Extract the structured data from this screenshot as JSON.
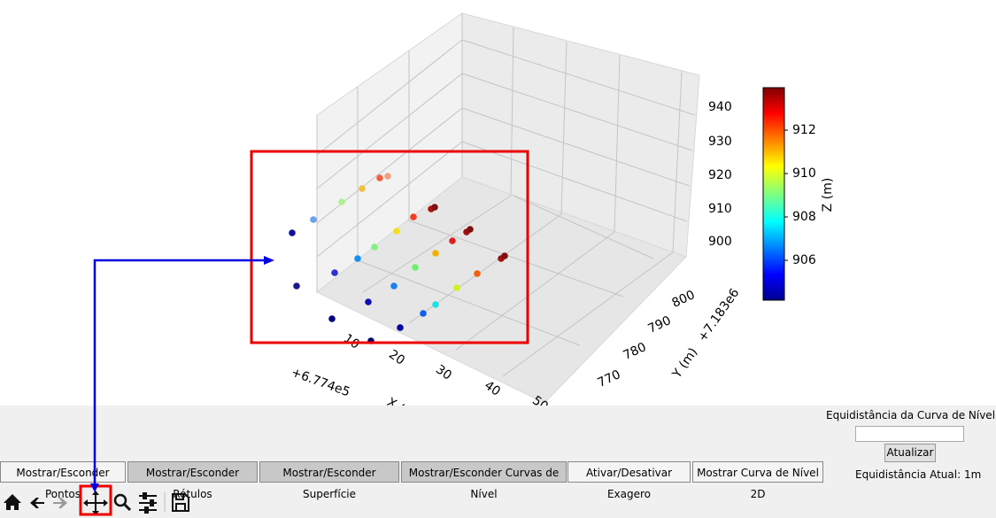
{
  "plot": {
    "zticks": [
      940,
      930,
      920,
      910,
      900
    ],
    "xticks": [
      10,
      20,
      30,
      40,
      50
    ],
    "yticks": [
      770,
      780,
      790,
      800
    ],
    "x_offset": "+6.774e5",
    "y_offset": "+7.183e6",
    "x_label": "X (m)",
    "y_label": "Y (m)",
    "colorbar": {
      "label": "Z (m)",
      "ticks": [
        912,
        910,
        908,
        906
      ]
    }
  },
  "buttons": [
    "Mostrar/Esconder Pontos",
    "Mostrar/Esconder Rótulos",
    "Mostrar/Esconder Superfície",
    "Mostrar/Esconder Curvas de Nível",
    "Ativar/Desativar Exagero",
    "Mostrar Curva de Nível 2D"
  ],
  "contour_panel": {
    "label": "Equidistância da Curva de Nível (m):",
    "button": "Atualizar",
    "current": "Equidistância Atual: 1m"
  }
}
